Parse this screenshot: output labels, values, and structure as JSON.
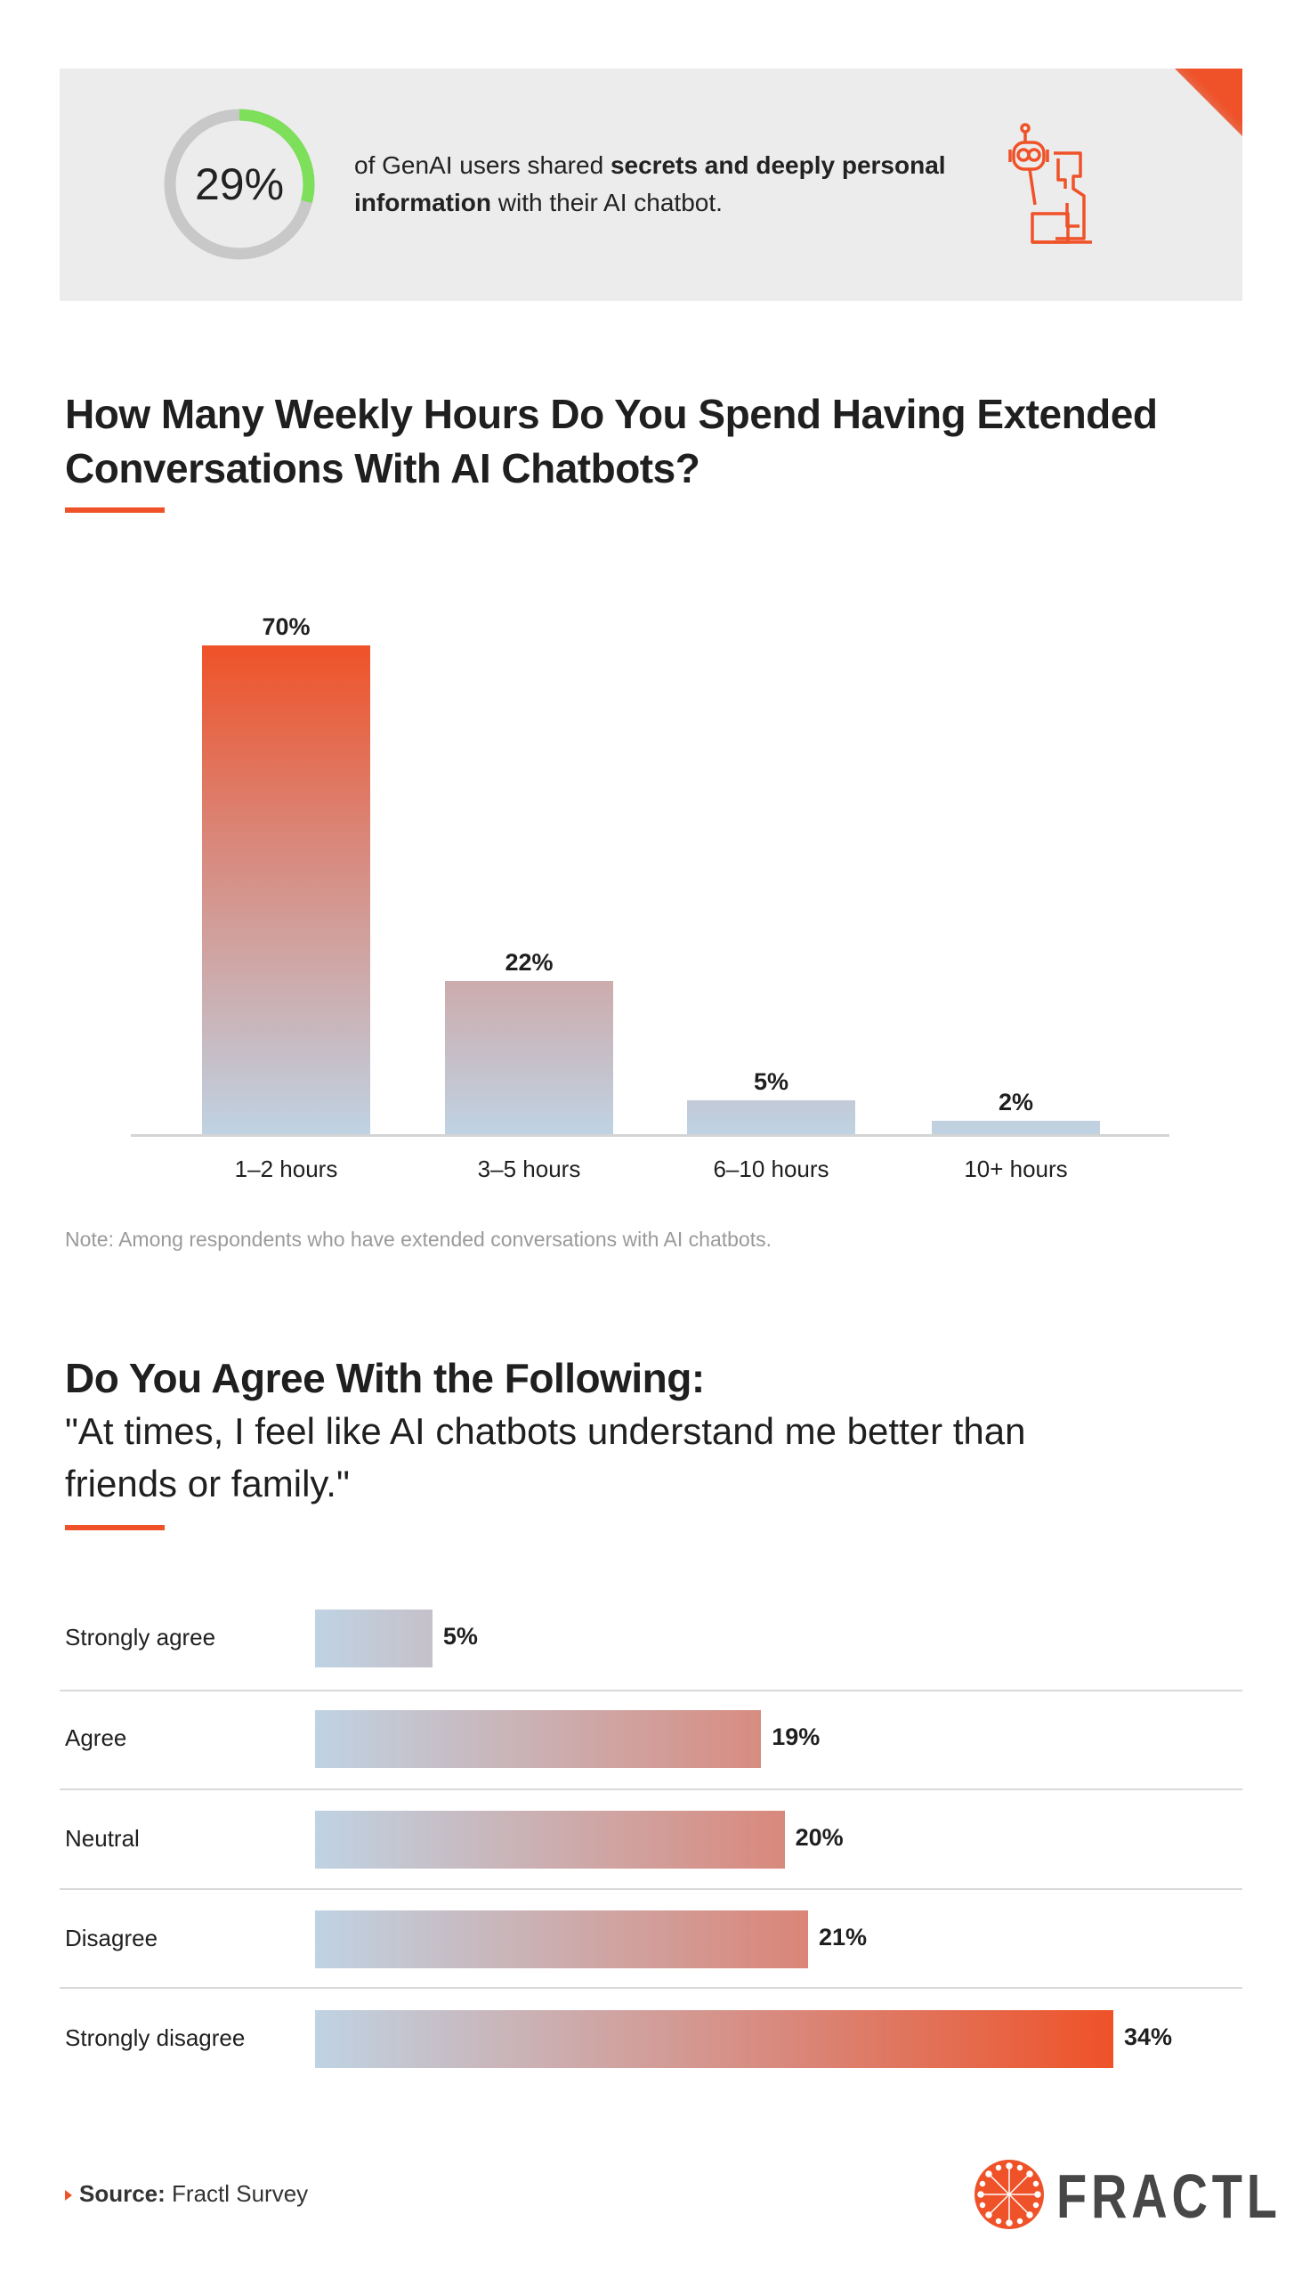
{
  "stat": {
    "value": "29%",
    "fraction": 0.29,
    "text_pre": "of GenAI users shared ",
    "text_bold": "secrets and deeply personal information",
    "text_post": " with their AI chatbot.",
    "ring_color": "#7ddf5a",
    "track_color": "#c8c8c8",
    "icon": "robot-and-person-at-laptop-icon"
  },
  "section1": {
    "title": "How Many Weekly Hours Do You Spend Having Extended Conversations With AI Chatbots?",
    "note": "Note: Among respondents who have extended conversations with AI chatbots."
  },
  "section2": {
    "title": "Do You Agree With the Following:",
    "quote": "\"At times, I feel like AI chatbots understand me better than friends or family.\""
  },
  "colors": {
    "accent": "#ef5228",
    "light": "#bfd3e3"
  },
  "chart_data": [
    {
      "type": "bar",
      "orientation": "vertical",
      "categories": [
        "1–2 hours",
        "3–5 hours",
        "6–10 hours",
        "10+ hours"
      ],
      "values": [
        70,
        22,
        5,
        2
      ],
      "data_labels": [
        "70%",
        "22%",
        "5%",
        "2%"
      ],
      "unit": "%",
      "ylim": [
        0,
        70
      ],
      "grid": false
    },
    {
      "type": "bar",
      "orientation": "horizontal",
      "categories": [
        "Strongly agree",
        "Agree",
        "Neutral",
        "Disagree",
        "Strongly disagree"
      ],
      "values": [
        5,
        19,
        20,
        21,
        34
      ],
      "data_labels": [
        "5%",
        "19%",
        "20%",
        "21%",
        "34%"
      ],
      "unit": "%",
      "xlim": [
        0,
        34
      ],
      "grid": false
    }
  ],
  "footer": {
    "source_label": "Source:",
    "source_value": " Fractl Survey",
    "logo_text": "FRACTL"
  }
}
